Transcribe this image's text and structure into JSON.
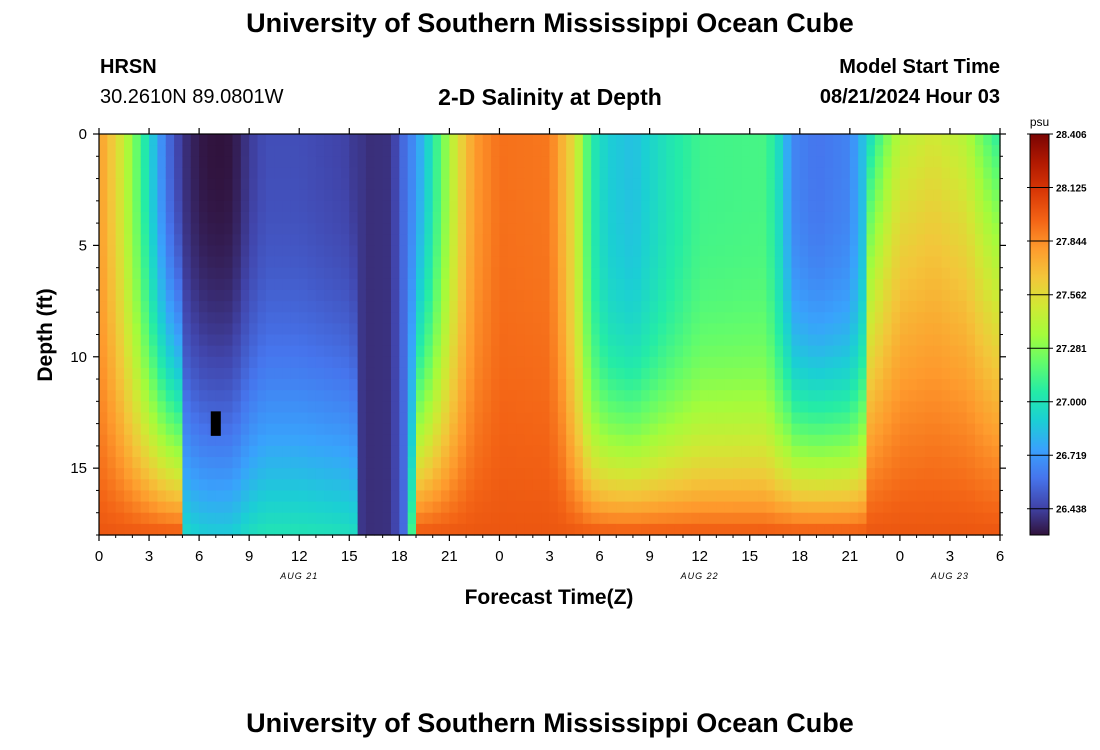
{
  "page": {
    "title": "University of Southern Mississippi Ocean Cube",
    "footer_title": "University of Southern Mississippi Ocean Cube"
  },
  "header": {
    "station": "HRSN",
    "coords": "30.2610N  89.0801W",
    "plot_title": "2-D Salinity at Depth",
    "model_label": "Model Start Time",
    "model_time": "08/21/2024 Hour 03"
  },
  "chart_data": {
    "type": "heatmap",
    "title": "2-D Salinity at Depth",
    "xlabel": "Forecast Time(Z)",
    "ylabel": "Depth (ft)",
    "x_hours_since_start": [
      0,
      3,
      6,
      9,
      12,
      15,
      18,
      21,
      24,
      27,
      30,
      33,
      36,
      39,
      42,
      45,
      48,
      51,
      54
    ],
    "x_tick_labels": [
      "0",
      "3",
      "6",
      "9",
      "12",
      "15",
      "18",
      "21",
      "0",
      "3",
      "6",
      "9",
      "12",
      "15",
      "18",
      "21",
      "0",
      "3",
      "6"
    ],
    "date_labels": [
      {
        "label": "AUG 21",
        "hour": 12
      },
      {
        "label": "AUG 22",
        "hour": 36
      },
      {
        "label": "AUG 23",
        "hour": 51
      }
    ],
    "xlim": [
      0,
      54
    ],
    "ylim": [
      0,
      18
    ],
    "y_ticks": [
      0,
      5,
      10,
      15
    ],
    "y_tick_labels": [
      "0",
      "5",
      "10",
      "15"
    ],
    "surface_profile_psu": [
      {
        "hour": 0,
        "value": 27.8
      },
      {
        "hour": 1,
        "value": 27.6
      },
      {
        "hour": 2,
        "value": 27.3
      },
      {
        "hour": 3,
        "value": 26.95
      },
      {
        "hour": 4,
        "value": 26.6
      },
      {
        "hour": 5,
        "value": 26.4
      },
      {
        "hour": 6,
        "value": 26.32
      },
      {
        "hour": 7,
        "value": 26.3
      },
      {
        "hour": 8,
        "value": 26.31
      },
      {
        "hour": 9,
        "value": 26.42
      },
      {
        "hour": 10,
        "value": 26.48
      },
      {
        "hour": 12,
        "value": 26.48
      },
      {
        "hour": 15,
        "value": 26.44
      },
      {
        "hour": 16,
        "value": 26.35
      },
      {
        "hour": 17.5,
        "value": 26.36
      },
      {
        "hour": 18.5,
        "value": 26.6
      },
      {
        "hour": 19.5,
        "value": 26.85
      },
      {
        "hour": 20.5,
        "value": 27.2
      },
      {
        "hour": 21.5,
        "value": 27.55
      },
      {
        "hour": 22.5,
        "value": 27.8
      },
      {
        "hour": 24,
        "value": 27.92
      },
      {
        "hour": 27,
        "value": 27.9
      },
      {
        "hour": 28.5,
        "value": 27.55
      },
      {
        "hour": 29.5,
        "value": 27.05
      },
      {
        "hour": 30.5,
        "value": 26.9
      },
      {
        "hour": 32,
        "value": 26.85
      },
      {
        "hour": 34,
        "value": 27.0
      },
      {
        "hour": 36,
        "value": 27.12
      },
      {
        "hour": 40,
        "value": 27.14
      },
      {
        "hour": 41,
        "value": 26.9
      },
      {
        "hour": 41.5,
        "value": 26.66
      },
      {
        "hour": 43,
        "value": 26.6
      },
      {
        "hour": 45,
        "value": 26.65
      },
      {
        "hour": 46,
        "value": 26.9
      },
      {
        "hour": 47,
        "value": 27.2
      },
      {
        "hour": 48,
        "value": 27.42
      },
      {
        "hour": 50,
        "value": 27.5
      },
      {
        "hour": 52,
        "value": 27.4
      },
      {
        "hour": 53,
        "value": 27.2
      },
      {
        "hour": 54,
        "value": 27.05
      }
    ],
    "bottom_layer_psu": 28.0,
    "bottom_layer_depth_ft": 18,
    "missing_cell": {
      "hour": 7,
      "depth_ft": 13
    },
    "colorbar": {
      "unit": "psu",
      "min": 26.3,
      "max": 28.406,
      "ticks": [
        28.406,
        28.125,
        27.844,
        27.562,
        27.281,
        27.0,
        26.719,
        26.438
      ],
      "tick_labels": [
        "28.406",
        "28.125",
        "27.844",
        "27.562",
        "27.281",
        "27.000",
        "26.719",
        "26.438"
      ],
      "colors": [
        "#30123b",
        "#4145ab",
        "#4675ed",
        "#39a2fc",
        "#1bcfd4",
        "#24eca6",
        "#61fc6c",
        "#a4fc3b",
        "#d1e834",
        "#f3c63a",
        "#fe9b2d",
        "#f36315",
        "#d93806",
        "#b11901",
        "#7a0403"
      ]
    }
  }
}
